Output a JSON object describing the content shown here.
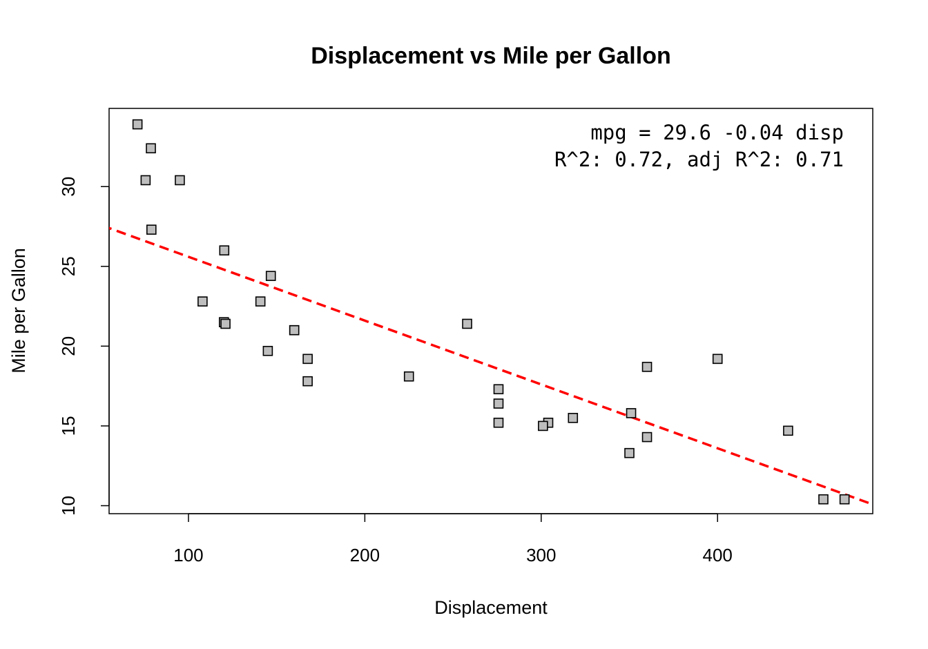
{
  "chart_data": {
    "type": "scatter",
    "title": "Displacement vs Mile per Gallon",
    "xlabel": "Displacement",
    "ylabel": "Mile per Gallon",
    "xlim": [
      55,
      488
    ],
    "ylim": [
      9.5,
      34.9
    ],
    "xticks": [
      100,
      200,
      300,
      400
    ],
    "yticks": [
      10,
      15,
      20,
      25,
      30
    ],
    "grid": false,
    "annotation": [
      "mpg = 29.6 -0.04 disp",
      "R^2: 0.72, adj R^2: 0.71"
    ],
    "point_style": {
      "shape": "square",
      "fill": "#bebebe",
      "stroke": "#000000"
    },
    "fit_line": {
      "intercept": 29.6,
      "slope": -0.04,
      "color": "#ff0000",
      "style": "dashed"
    },
    "points": [
      {
        "x": 160,
        "y": 21.0
      },
      {
        "x": 160,
        "y": 21.0
      },
      {
        "x": 108,
        "y": 22.8
      },
      {
        "x": 258,
        "y": 21.4
      },
      {
        "x": 360,
        "y": 18.7
      },
      {
        "x": 225,
        "y": 18.1
      },
      {
        "x": 360,
        "y": 14.3
      },
      {
        "x": 146.7,
        "y": 24.4
      },
      {
        "x": 140.8,
        "y": 22.8
      },
      {
        "x": 167.6,
        "y": 19.2
      },
      {
        "x": 167.6,
        "y": 17.8
      },
      {
        "x": 275.8,
        "y": 16.4
      },
      {
        "x": 275.8,
        "y": 17.3
      },
      {
        "x": 275.8,
        "y": 15.2
      },
      {
        "x": 472,
        "y": 10.4
      },
      {
        "x": 460,
        "y": 10.4
      },
      {
        "x": 440,
        "y": 14.7
      },
      {
        "x": 78.7,
        "y": 32.4
      },
      {
        "x": 75.7,
        "y": 30.4
      },
      {
        "x": 71.1,
        "y": 33.9
      },
      {
        "x": 120.1,
        "y": 21.5
      },
      {
        "x": 318,
        "y": 15.5
      },
      {
        "x": 304,
        "y": 15.2
      },
      {
        "x": 350,
        "y": 13.3
      },
      {
        "x": 400,
        "y": 19.2
      },
      {
        "x": 79,
        "y": 27.3
      },
      {
        "x": 120.3,
        "y": 26.0
      },
      {
        "x": 95.1,
        "y": 30.4
      },
      {
        "x": 351,
        "y": 15.8
      },
      {
        "x": 145,
        "y": 19.7
      },
      {
        "x": 301,
        "y": 15.0
      },
      {
        "x": 121,
        "y": 21.4
      }
    ]
  }
}
